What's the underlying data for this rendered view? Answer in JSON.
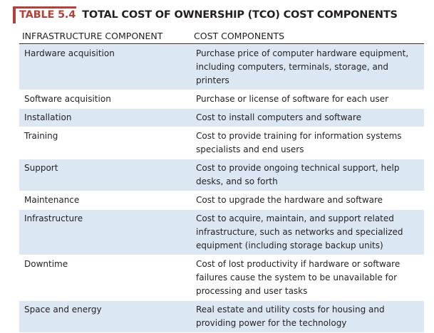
{
  "title": {
    "number": "TABLE 5.4",
    "text": "TOTAL COST OF OWNERSHIP (TCO) COST COMPONENTS"
  },
  "columns": [
    "INFRASTRUCTURE COMPONENT",
    "COST COMPONENTS"
  ],
  "rows": [
    {
      "component": "Hardware acquisition",
      "cost": "Purchase price of computer hardware equipment, including computers, terminals, storage, and printers"
    },
    {
      "component": "Software acquisition",
      "cost": "Purchase or license of software for each user"
    },
    {
      "component": "Installation",
      "cost": "Cost to install computers and software"
    },
    {
      "component": "Training",
      "cost": "Cost to provide training for information systems specialists and end users"
    },
    {
      "component": "Support",
      "cost": "Cost to provide ongoing technical support, help desks, and so forth"
    },
    {
      "component": "Maintenance",
      "cost": "Cost to upgrade the hardware and software"
    },
    {
      "component": "Infrastructure",
      "cost": "Cost to acquire, maintain, and support related infrastructure, such as networks and specialized equipment (including storage backup units)"
    },
    {
      "component": "Downtime",
      "cost": "Cost of lost productivity if hardware or software failures cause the system to be unavailable for processing and user tasks"
    },
    {
      "component": "Space and energy",
      "cost": "Real estate and utility costs for housing and providing power for the technology"
    }
  ],
  "colors": {
    "accent": "#b5403a",
    "row_shade": "#dce7f4"
  }
}
